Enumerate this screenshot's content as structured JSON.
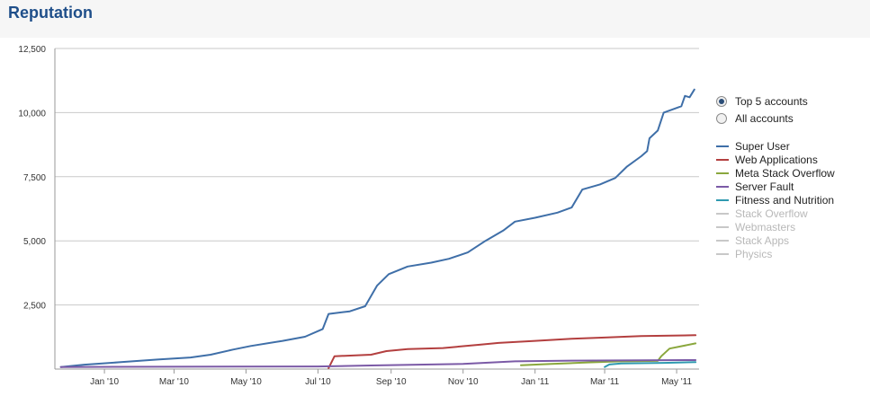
{
  "page": {
    "title": "Reputation"
  },
  "colors": {
    "panel": "#ffffff",
    "grid": "#c9c9c9",
    "axis": "#999999",
    "title": "#1f4f8a",
    "inactive": "#c8c8c8"
  },
  "legend": {
    "radio_options": [
      {
        "label": "Top 5 accounts",
        "checked": true
      },
      {
        "label": "All accounts",
        "checked": false
      }
    ],
    "series": [
      {
        "name": "Super User",
        "color": "#3f6fa8",
        "active": true
      },
      {
        "name": "Web Applications",
        "color": "#b33f3f",
        "active": true
      },
      {
        "name": "Meta Stack Overflow",
        "color": "#8aa73d",
        "active": true
      },
      {
        "name": "Server Fault",
        "color": "#7b5aa6",
        "active": true
      },
      {
        "name": "Fitness and Nutrition",
        "color": "#2f9ab0",
        "active": true
      },
      {
        "name": "Stack Overflow",
        "color": "#c8c8c8",
        "active": false
      },
      {
        "name": "Webmasters",
        "color": "#c8c8c8",
        "active": false
      },
      {
        "name": "Stack Apps",
        "color": "#c8c8c8",
        "active": false
      },
      {
        "name": "Physics",
        "color": "#c8c8c8",
        "active": false
      }
    ]
  },
  "chart_data": {
    "type": "line",
    "xlim": [
      "2009-11-20",
      "2011-05-20"
    ],
    "ylim": [
      0,
      12500
    ],
    "grid": true,
    "legend_position": "right",
    "x_ticks": [
      {
        "date": "2010-01-01",
        "label": "Jan '10"
      },
      {
        "date": "2010-03-01",
        "label": "Mar '10"
      },
      {
        "date": "2010-05-01",
        "label": "May '10"
      },
      {
        "date": "2010-07-01",
        "label": "Jul '10"
      },
      {
        "date": "2010-09-01",
        "label": "Sep '10"
      },
      {
        "date": "2010-11-01",
        "label": "Nov '10"
      },
      {
        "date": "2011-01-01",
        "label": "Jan '11"
      },
      {
        "date": "2011-03-01",
        "label": "Mar '11"
      },
      {
        "date": "2011-05-01",
        "label": "May '11"
      }
    ],
    "y_ticks": [
      {
        "value": 2500,
        "label": "2,500"
      },
      {
        "value": 5000,
        "label": "5,000"
      },
      {
        "value": 7500,
        "label": "7,500"
      },
      {
        "value": 10000,
        "label": "10,000"
      },
      {
        "value": 12500,
        "label": "12,500"
      }
    ],
    "series": [
      {
        "name": "Super User",
        "color": "#3f6fa8",
        "points": [
          [
            "2009-11-25",
            80
          ],
          [
            "2009-12-15",
            170
          ],
          [
            "2010-01-15",
            270
          ],
          [
            "2010-02-15",
            370
          ],
          [
            "2010-03-15",
            450
          ],
          [
            "2010-04-01",
            560
          ],
          [
            "2010-04-20",
            760
          ],
          [
            "2010-05-05",
            900
          ],
          [
            "2010-06-01",
            1100
          ],
          [
            "2010-06-20",
            1260
          ],
          [
            "2010-07-05",
            1560
          ],
          [
            "2010-07-10",
            2150
          ],
          [
            "2010-07-28",
            2250
          ],
          [
            "2010-08-10",
            2450
          ],
          [
            "2010-08-20",
            3250
          ],
          [
            "2010-08-30",
            3700
          ],
          [
            "2010-09-15",
            4000
          ],
          [
            "2010-10-05",
            4150
          ],
          [
            "2010-10-20",
            4300
          ],
          [
            "2010-11-05",
            4550
          ],
          [
            "2010-11-20",
            5000
          ],
          [
            "2010-12-05",
            5400
          ],
          [
            "2010-12-15",
            5750
          ],
          [
            "2011-01-01",
            5900
          ],
          [
            "2011-01-20",
            6100
          ],
          [
            "2011-02-01",
            6300
          ],
          [
            "2011-02-10",
            7000
          ],
          [
            "2011-02-25",
            7200
          ],
          [
            "2011-03-10",
            7450
          ],
          [
            "2011-03-20",
            7900
          ],
          [
            "2011-04-01",
            8300
          ],
          [
            "2011-04-06",
            8500
          ],
          [
            "2011-04-08",
            9000
          ],
          [
            "2011-04-15",
            9300
          ],
          [
            "2011-04-20",
            10000
          ],
          [
            "2011-05-05",
            10250
          ],
          [
            "2011-05-08",
            10650
          ],
          [
            "2011-05-12",
            10600
          ],
          [
            "2011-05-16",
            10900
          ]
        ]
      },
      {
        "name": "Web Applications",
        "color": "#b33f3f",
        "points": [
          [
            "2010-07-10",
            40
          ],
          [
            "2010-07-15",
            500
          ],
          [
            "2010-08-15",
            560
          ],
          [
            "2010-08-28",
            700
          ],
          [
            "2010-09-15",
            780
          ],
          [
            "2010-10-15",
            820
          ],
          [
            "2010-11-15",
            950
          ],
          [
            "2010-12-01",
            1020
          ],
          [
            "2011-01-01",
            1100
          ],
          [
            "2011-02-01",
            1180
          ],
          [
            "2011-03-01",
            1230
          ],
          [
            "2011-04-01",
            1290
          ],
          [
            "2011-05-17",
            1320
          ]
        ]
      },
      {
        "name": "Meta Stack Overflow",
        "color": "#8aa73d",
        "points": [
          [
            "2010-12-20",
            150
          ],
          [
            "2011-01-15",
            200
          ],
          [
            "2011-02-15",
            260
          ],
          [
            "2011-03-15",
            300
          ],
          [
            "2011-04-15",
            320
          ],
          [
            "2011-04-18",
            500
          ],
          [
            "2011-04-25",
            800
          ],
          [
            "2011-05-17",
            1000
          ]
        ]
      },
      {
        "name": "Server Fault",
        "color": "#7b5aa6",
        "points": [
          [
            "2009-11-25",
            80
          ],
          [
            "2010-03-01",
            90
          ],
          [
            "2010-07-01",
            100
          ],
          [
            "2010-08-15",
            140
          ],
          [
            "2010-11-01",
            200
          ],
          [
            "2010-12-15",
            300
          ],
          [
            "2011-02-01",
            330
          ],
          [
            "2011-05-17",
            350
          ]
        ]
      },
      {
        "name": "Fitness and Nutrition",
        "color": "#2f9ab0",
        "points": [
          [
            "2011-03-01",
            80
          ],
          [
            "2011-03-05",
            180
          ],
          [
            "2011-03-15",
            220
          ],
          [
            "2011-04-20",
            240
          ],
          [
            "2011-05-17",
            270
          ]
        ]
      }
    ]
  }
}
